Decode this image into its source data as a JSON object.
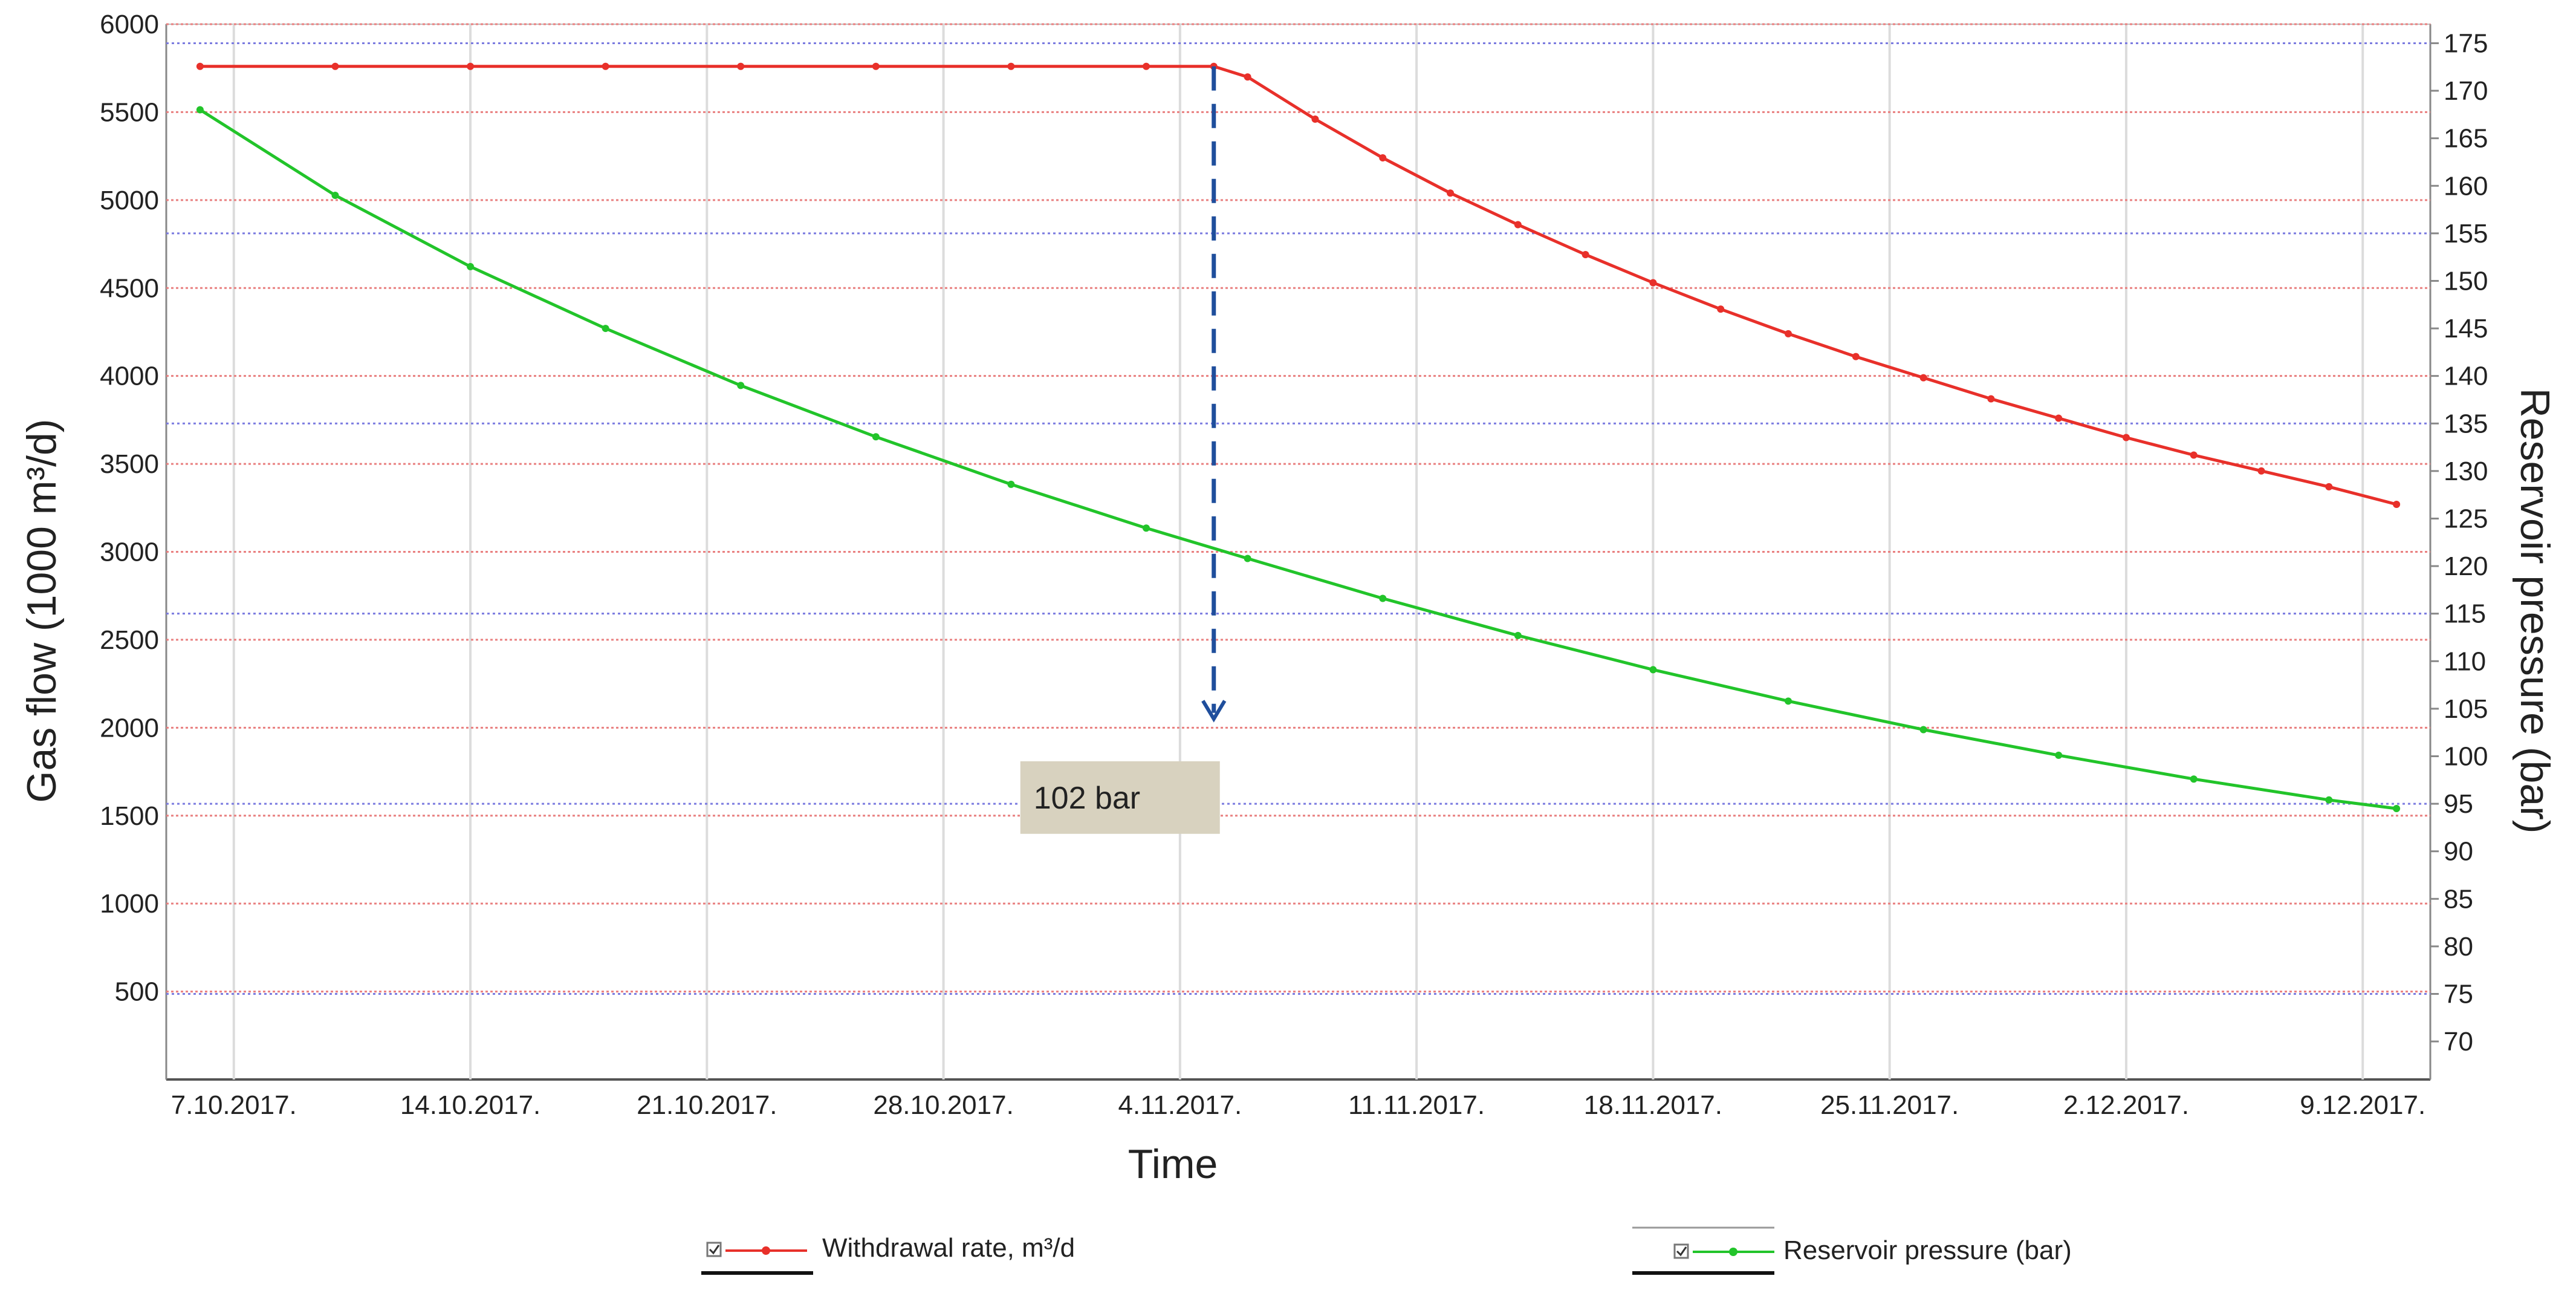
{
  "chart_data": {
    "type": "line",
    "xlabel": "Time",
    "ylabel_left": "Gas flow  (1000 m³/d)",
    "ylabel_right": "Reservoir pressure (bar)",
    "x_tick_labels": [
      "7.10.2017.",
      "14.10.2017.",
      "21.10.2017.",
      "28.10.2017.",
      "4.11.2017.",
      "11.11.2017.",
      "18.11.2017.",
      "25.11.2017.",
      "2.12.2017.",
      "9.12.2017."
    ],
    "ylim_left": [
      0,
      6000
    ],
    "ylim_right": [
      66,
      177
    ],
    "left_ticks": [
      500,
      1000,
      1500,
      2000,
      2500,
      3000,
      3500,
      4000,
      4500,
      5000,
      5500,
      6000
    ],
    "right_ticks": [
      70,
      75,
      80,
      85,
      90,
      95,
      100,
      105,
      110,
      115,
      120,
      125,
      130,
      135,
      140,
      145,
      150,
      155,
      160,
      165,
      170,
      175
    ],
    "grid": true,
    "legend_position": "bottom",
    "series": [
      {
        "name": "Withdrawal rate, m³/d",
        "axis": "left",
        "color": "#e8302a",
        "marker": "dot",
        "points": [
          {
            "x": "6.10.2017.",
            "y": 5760
          },
          {
            "x": "10.10.2017.",
            "y": 5760
          },
          {
            "x": "14.10.2017.",
            "y": 5760
          },
          {
            "x": "18.10.2017.",
            "y": 5760
          },
          {
            "x": "22.10.2017.",
            "y": 5760
          },
          {
            "x": "26.10.2017.",
            "y": 5760
          },
          {
            "x": "30.10.2017.",
            "y": 5760
          },
          {
            "x": "3.11.2017.",
            "y": 5760
          },
          {
            "x": "5.11.2017.",
            "y": 5760
          },
          {
            "x": "6.11.2017.",
            "y": 5700
          },
          {
            "x": "8.11.2017.",
            "y": 5460
          },
          {
            "x": "10.11.2017.",
            "y": 5240
          },
          {
            "x": "12.11.2017.",
            "y": 5040
          },
          {
            "x": "14.11.2017.",
            "y": 4860
          },
          {
            "x": "16.11.2017.",
            "y": 4690
          },
          {
            "x": "18.11.2017.",
            "y": 4530
          },
          {
            "x": "20.11.2017.",
            "y": 4380
          },
          {
            "x": "22.11.2017.",
            "y": 4240
          },
          {
            "x": "24.11.2017.",
            "y": 4110
          },
          {
            "x": "26.11.2017.",
            "y": 3990
          },
          {
            "x": "28.11.2017.",
            "y": 3870
          },
          {
            "x": "30.11.2017.",
            "y": 3760
          },
          {
            "x": "2.12.2017.",
            "y": 3650
          },
          {
            "x": "4.12.2017.",
            "y": 3550
          },
          {
            "x": "6.12.2017.",
            "y": 3460
          },
          {
            "x": "8.12.2017.",
            "y": 3370
          },
          {
            "x": "10.12.2017.",
            "y": 3270
          }
        ]
      },
      {
        "name": "Reservoir pressure (bar)",
        "axis": "right",
        "color": "#22c42a",
        "marker": "dot",
        "points": [
          {
            "x": "6.10.2017.",
            "y": 168.0
          },
          {
            "x": "10.10.2017.",
            "y": 159.0
          },
          {
            "x": "14.10.2017.",
            "y": 151.5
          },
          {
            "x": "18.10.2017.",
            "y": 145.0
          },
          {
            "x": "22.10.2017.",
            "y": 139.0
          },
          {
            "x": "26.10.2017.",
            "y": 133.6
          },
          {
            "x": "30.10.2017.",
            "y": 128.6
          },
          {
            "x": "3.11.2017.",
            "y": 124.0
          },
          {
            "x": "6.11.2017.",
            "y": 120.8
          },
          {
            "x": "10.11.2017.",
            "y": 116.6
          },
          {
            "x": "14.11.2017.",
            "y": 112.7
          },
          {
            "x": "18.11.2017.",
            "y": 109.1
          },
          {
            "x": "22.11.2017.",
            "y": 105.8
          },
          {
            "x": "26.11.2017.",
            "y": 102.8
          },
          {
            "x": "30.11.2017.",
            "y": 100.1
          },
          {
            "x": "4.12.2017.",
            "y": 97.6
          },
          {
            "x": "8.12.2017.",
            "y": 95.4
          },
          {
            "x": "10.12.2017.",
            "y": 94.5
          }
        ]
      }
    ],
    "annotations": [
      {
        "text": "102 bar",
        "x": "5.11.2017.",
        "arrow_from_left_y": 5760,
        "arrow_to_left_y": 2050
      }
    ]
  }
}
